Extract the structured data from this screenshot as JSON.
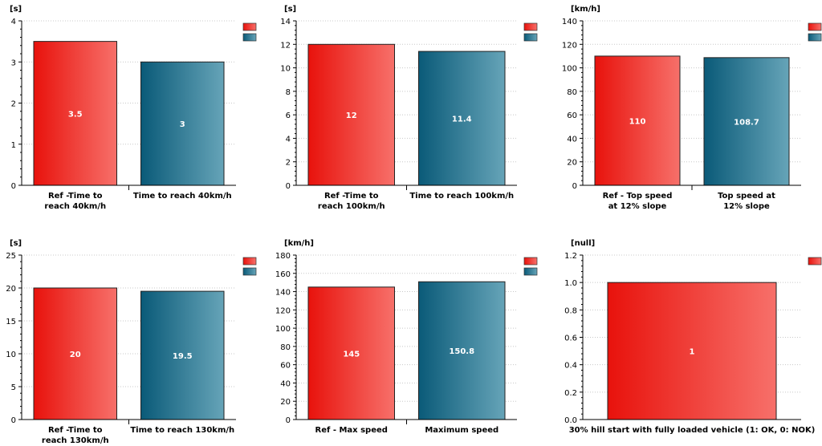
{
  "chart_data": [
    {
      "type": "bar",
      "unit": "[s]",
      "categories": [
        "Ref -Time to\nreach 40km/h",
        "Time to reach 40km/h"
      ],
      "values": [
        3.5,
        3
      ],
      "value_labels": [
        "3.5",
        "3"
      ],
      "ylim": [
        0,
        4
      ],
      "yticks": [
        "0",
        "1",
        "2",
        "3",
        "4"
      ],
      "legend_swatches": 2,
      "grid": true
    },
    {
      "type": "bar",
      "unit": "[s]",
      "categories": [
        "Ref -Time to\nreach 100km/h",
        "Time to reach 100km/h"
      ],
      "values": [
        12,
        11.4
      ],
      "value_labels": [
        "12",
        "11.4"
      ],
      "ylim": [
        0,
        14
      ],
      "yticks": [
        "0",
        "2",
        "4",
        "6",
        "8",
        "10",
        "12",
        "14"
      ],
      "legend_swatches": 2,
      "grid": true
    },
    {
      "type": "bar",
      "unit": "[km/h]",
      "categories": [
        "Ref - Top speed\nat 12% slope",
        "Top speed at\n12% slope"
      ],
      "values": [
        110,
        108.7
      ],
      "value_labels": [
        "110",
        "108.7"
      ],
      "ylim": [
        0,
        140
      ],
      "yticks": [
        "0",
        "20",
        "40",
        "60",
        "80",
        "100",
        "120",
        "140"
      ],
      "legend_swatches": 2,
      "grid": true
    },
    {
      "type": "bar",
      "unit": "[s]",
      "categories": [
        "Ref -Time to\nreach 130km/h",
        "Time to reach 130km/h"
      ],
      "values": [
        20,
        19.5
      ],
      "value_labels": [
        "20",
        "19.5"
      ],
      "ylim": [
        0,
        25
      ],
      "yticks": [
        "0",
        "5",
        "10",
        "15",
        "20",
        "25"
      ],
      "legend_swatches": 2,
      "grid": true
    },
    {
      "type": "bar",
      "unit": "[km/h]",
      "categories": [
        "Ref - Max speed",
        "Maximum speed"
      ],
      "values": [
        145,
        150.8
      ],
      "value_labels": [
        "145",
        "150.8"
      ],
      "ylim": [
        0,
        180
      ],
      "yticks": [
        "0",
        "20",
        "40",
        "60",
        "80",
        "100",
        "120",
        "140",
        "160",
        "180"
      ],
      "legend_swatches": 2,
      "grid": true
    },
    {
      "type": "bar",
      "unit": "[null]",
      "categories": [
        "30% hill start with fully loaded vehicle (1: OK, 0: NOK)"
      ],
      "values": [
        1
      ],
      "value_labels": [
        "1"
      ],
      "ylim": [
        0,
        1.2
      ],
      "yticks": [
        "0.0",
        "0.2",
        "0.4",
        "0.6",
        "0.8",
        "1.0",
        "1.2"
      ],
      "legend_swatches": 1,
      "grid": true
    }
  ],
  "colors": {
    "ref_dark": "#e8120c",
    "ref_light": "#f7706a",
    "sim_dark": "#0a5a78",
    "sim_light": "#66a4b8",
    "grid": "#c8c8c8",
    "axis": "#000000"
  }
}
